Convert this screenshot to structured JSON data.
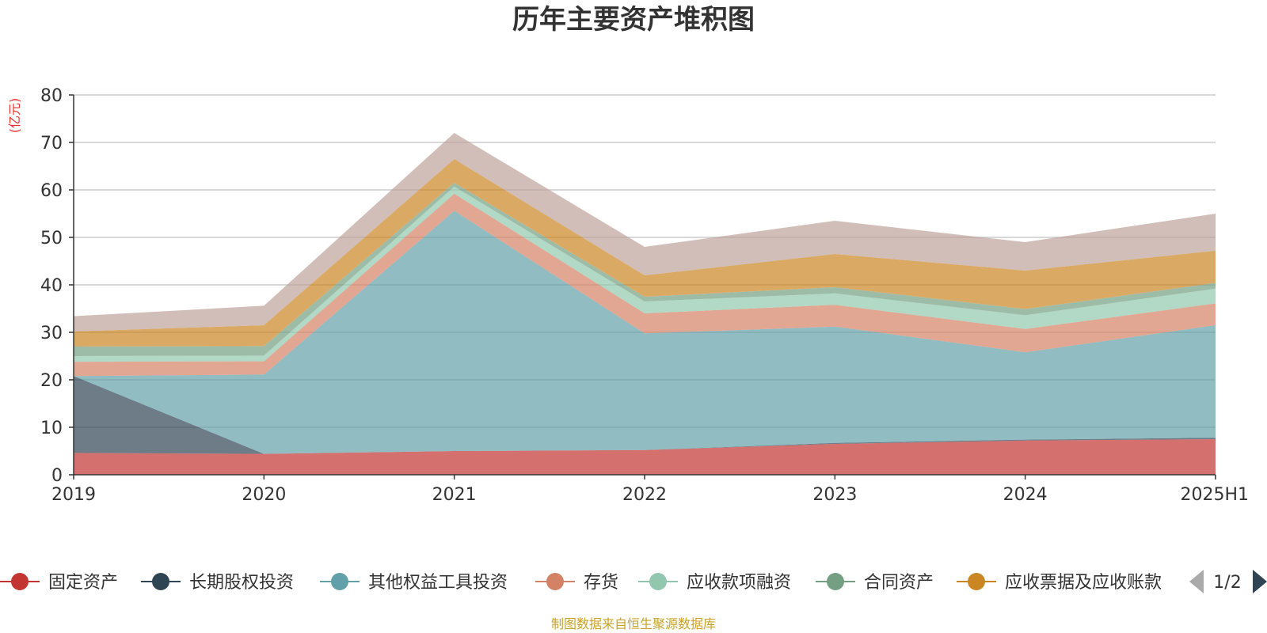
{
  "chart_data": {
    "type": "area",
    "stacked": true,
    "title": "历年主要资产堆积图",
    "y_unit_label": "(亿元)",
    "x": [
      "2019",
      "2020",
      "2021",
      "2022",
      "2023",
      "2024",
      "2025H1"
    ],
    "ylim": [
      0,
      80
    ],
    "yticks": [
      0,
      10,
      20,
      30,
      40,
      50,
      60,
      70,
      80
    ],
    "grid": true,
    "legend_position": "bottom",
    "series": [
      {
        "name": "固定资产",
        "color": "#c23531",
        "values": [
          4.6,
          4.4,
          5.0,
          5.2,
          6.5,
          7.2,
          7.5
        ]
      },
      {
        "name": "长期股权投资",
        "color": "#2f4554",
        "values": [
          16.2,
          0.0,
          0.0,
          0.0,
          0.2,
          0.2,
          0.3
        ]
      },
      {
        "name": "其他权益工具投资",
        "color": "#61a0a8",
        "values": [
          0.0,
          16.7,
          50.6,
          24.6,
          24.5,
          18.4,
          23.7
        ]
      },
      {
        "name": "存货",
        "color": "#d48265",
        "values": [
          3.0,
          2.8,
          3.6,
          4.2,
          4.6,
          4.9,
          4.6
        ]
      },
      {
        "name": "应收款项融资",
        "color": "#91c7ae",
        "values": [
          1.2,
          1.2,
          1.5,
          2.5,
          2.4,
          2.9,
          3.1
        ]
      },
      {
        "name": "合同资产",
        "color": "#749f83",
        "values": [
          2.0,
          2.0,
          0.8,
          1.0,
          1.3,
          1.3,
          1.2
        ]
      },
      {
        "name": "应收票据及应收账款",
        "color": "#ca8622",
        "values": [
          3.2,
          4.4,
          5.0,
          4.5,
          7.0,
          8.1,
          6.8
        ]
      },
      {
        "name": "",
        "color": "#bda29a",
        "values": [
          3.2,
          4.1,
          5.5,
          6.0,
          7.0,
          6.0,
          7.8
        ]
      }
    ],
    "legend_page": "1/2",
    "source": "制图数据来自恒生聚源数据库"
  }
}
